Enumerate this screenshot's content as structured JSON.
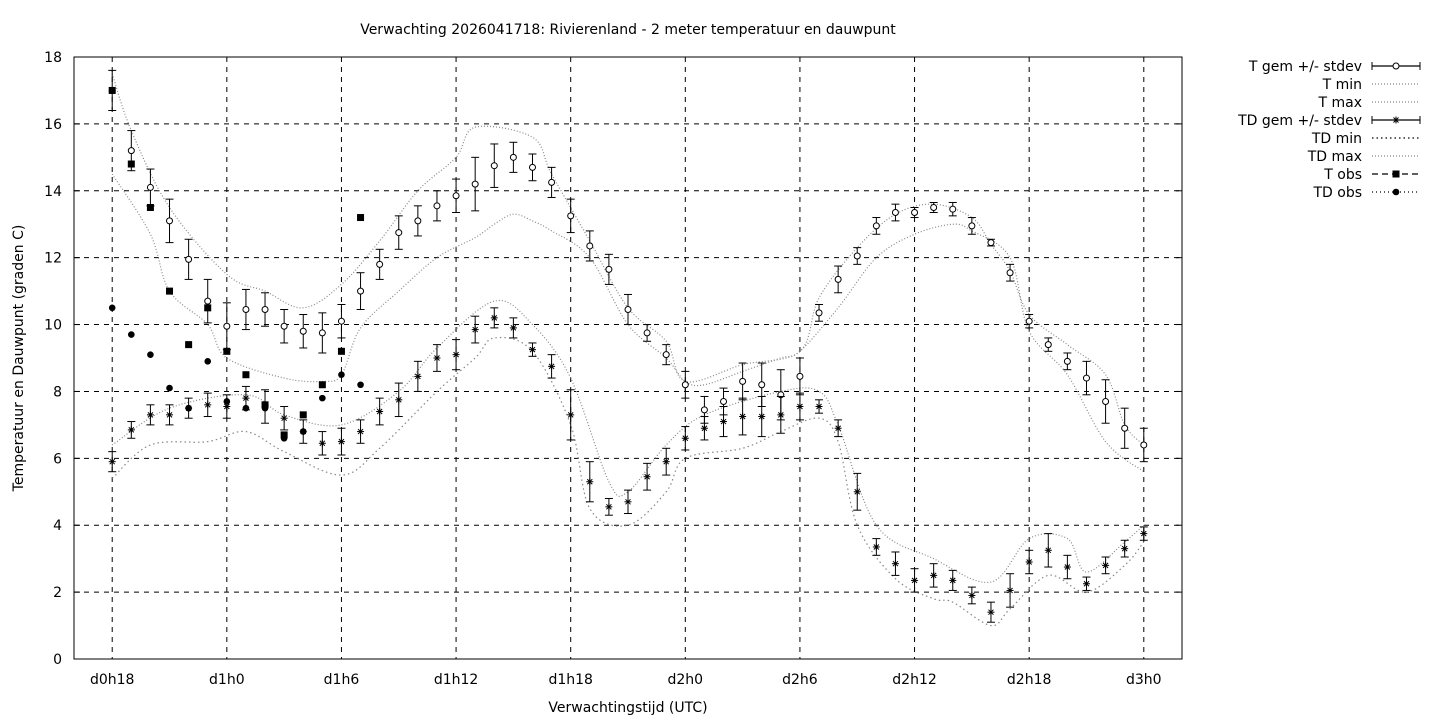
{
  "chart_data": {
    "type": "line",
    "title": "Verwachting 2026041718: Rivierenland - 2 meter temperatuur en dauwpunt",
    "xlabel": "Verwachtingstijd (UTC)",
    "ylabel": "Temperatuur en Dauwpunt (graden C)",
    "xlim_hours_from_start": [
      -2,
      56
    ],
    "ylim": [
      0,
      18
    ],
    "yticks": [
      0,
      2,
      4,
      6,
      8,
      10,
      12,
      14,
      16,
      18
    ],
    "xticks": [
      {
        "hour": 0,
        "label": "d0h18"
      },
      {
        "hour": 6,
        "label": "d1h0"
      },
      {
        "hour": 12,
        "label": "d1h6"
      },
      {
        "hour": 18,
        "label": "d1h12"
      },
      {
        "hour": 24,
        "label": "d1h18"
      },
      {
        "hour": 30,
        "label": "d2h0"
      },
      {
        "hour": 36,
        "label": "d2h6"
      },
      {
        "hour": 42,
        "label": "d2h12"
      },
      {
        "hour": 48,
        "label": "d2h18"
      },
      {
        "hour": 54,
        "label": "d3h0"
      }
    ],
    "grid": true,
    "legend_position": "outside-top-right",
    "legend": [
      "T gem +/- stdev",
      "T min",
      "T max",
      "TD gem +/- stdev",
      "TD min",
      "TD max",
      "T obs",
      "TD obs"
    ],
    "series": {
      "t_mean": {
        "name": "T gem +/- stdev",
        "values": [
          17.0,
          15.2,
          14.1,
          13.1,
          11.95,
          10.7,
          9.95,
          10.45,
          10.45,
          9.95,
          9.8,
          9.75,
          10.1,
          11.0,
          11.8,
          12.75,
          13.1,
          13.55,
          13.85,
          14.2,
          14.75,
          15.0,
          14.7,
          14.25,
          13.25,
          12.35,
          11.65,
          10.45,
          9.75,
          9.1,
          8.2,
          7.45,
          7.7,
          8.3,
          8.2,
          7.9,
          8.45,
          10.35,
          11.35,
          12.05,
          12.95,
          13.35,
          13.35,
          13.5,
          13.45,
          12.95,
          12.45,
          11.55,
          10.1,
          9.4,
          8.9,
          8.4,
          7.7,
          6.9,
          6.4
        ],
        "stdev": [
          0.6,
          0.6,
          0.55,
          0.65,
          0.6,
          0.65,
          0.7,
          0.6,
          0.5,
          0.5,
          0.5,
          0.6,
          0.5,
          0.55,
          0.45,
          0.5,
          0.45,
          0.45,
          0.5,
          0.8,
          0.65,
          0.45,
          0.4,
          0.45,
          0.5,
          0.45,
          0.45,
          0.45,
          0.25,
          0.3,
          0.4,
          0.4,
          0.4,
          0.55,
          0.65,
          0.75,
          0.55,
          0.25,
          0.4,
          0.25,
          0.25,
          0.25,
          0.15,
          0.15,
          0.2,
          0.25,
          0.1,
          0.25,
          0.2,
          0.2,
          0.25,
          0.5,
          0.65,
          0.6,
          0.5
        ]
      },
      "td_mean": {
        "name": "TD gem +/- stdev",
        "values": [
          5.9,
          6.85,
          7.3,
          7.3,
          7.5,
          7.6,
          7.55,
          7.8,
          7.55,
          7.2,
          6.8,
          6.45,
          6.5,
          6.8,
          7.4,
          7.75,
          8.45,
          9.0,
          9.1,
          9.85,
          10.2,
          9.9,
          9.25,
          8.75,
          7.3,
          5.3,
          4.55,
          4.7,
          5.45,
          5.9,
          6.6,
          6.9,
          7.1,
          7.25,
          7.25,
          7.3,
          7.55,
          7.55,
          6.9,
          5.0,
          3.35,
          2.85,
          2.35,
          2.5,
          2.35,
          1.9,
          1.4,
          2.05,
          2.9,
          3.25,
          2.75,
          2.25,
          2.8,
          3.3,
          3.75
        ],
        "stdev": [
          0.3,
          0.25,
          0.3,
          0.3,
          0.3,
          0.35,
          0.35,
          0.35,
          0.5,
          0.35,
          0.35,
          0.35,
          0.4,
          0.35,
          0.4,
          0.5,
          0.45,
          0.4,
          0.45,
          0.4,
          0.3,
          0.3,
          0.2,
          0.35,
          0.75,
          0.6,
          0.25,
          0.35,
          0.4,
          0.4,
          0.35,
          0.35,
          0.45,
          0.55,
          0.6,
          0.55,
          0.4,
          0.2,
          0.25,
          0.55,
          0.25,
          0.35,
          0.35,
          0.35,
          0.3,
          0.25,
          0.3,
          0.5,
          0.35,
          0.5,
          0.35,
          0.2,
          0.25,
          0.25,
          0.2
        ]
      },
      "t_min": {
        "name": "T min",
        "x": [
          0,
          2,
          3,
          5,
          6,
          9,
          11,
          12,
          13,
          15,
          17,
          19,
          20,
          21,
          22,
          23,
          25,
          27,
          29,
          30,
          31,
          33,
          35,
          36,
          38,
          40,
          42,
          44,
          45,
          47,
          48,
          50,
          52,
          54
        ],
        "values": [
          14.5,
          12.7,
          11.0,
          10.0,
          9.0,
          8.4,
          8.3,
          8.5,
          9.9,
          11.0,
          12.0,
          12.6,
          13.0,
          13.3,
          13.1,
          12.8,
          12.0,
          10.0,
          9.0,
          8.3,
          8.2,
          8.6,
          9.0,
          9.2,
          10.5,
          12.0,
          12.7,
          13.0,
          12.8,
          12.0,
          9.8,
          8.5,
          6.5,
          5.6
        ]
      },
      "t_max": {
        "name": "T max",
        "x": [
          0,
          1,
          3,
          6,
          8,
          10,
          12,
          14,
          16,
          18,
          19,
          22,
          23,
          25,
          27,
          29,
          30,
          33,
          36,
          37,
          39,
          41,
          43,
          45,
          46,
          47,
          48,
          50,
          52,
          53,
          54
        ],
        "values": [
          17.5,
          15.8,
          13.5,
          11.5,
          11.0,
          10.5,
          11.2,
          12.5,
          14.0,
          15.0,
          15.9,
          15.6,
          14.5,
          12.5,
          10.5,
          9.5,
          8.3,
          8.8,
          9.2,
          10.8,
          12.3,
          13.3,
          13.6,
          13.2,
          12.4,
          11.6,
          10.3,
          9.4,
          8.5,
          7.0,
          6.4
        ]
      },
      "td_min": {
        "name": "TD min",
        "x": [
          0,
          2,
          5,
          7,
          9,
          12,
          14,
          17,
          19,
          20,
          22,
          24,
          25,
          27,
          29,
          30,
          33,
          35,
          37,
          38,
          39,
          41,
          43,
          44,
          46,
          47,
          49,
          51,
          53,
          54
        ],
        "values": [
          5.4,
          6.4,
          6.5,
          6.8,
          6.2,
          5.5,
          6.3,
          8.0,
          9.0,
          9.6,
          9.2,
          7.0,
          4.5,
          4.0,
          5.0,
          6.0,
          6.3,
          6.8,
          7.2,
          6.5,
          4.0,
          2.4,
          1.8,
          1.7,
          1.0,
          1.5,
          2.5,
          2.0,
          2.8,
          3.5
        ]
      },
      "td_max": {
        "name": "TD max",
        "x": [
          0,
          3,
          7,
          9,
          12,
          15,
          17,
          20,
          22,
          24,
          26,
          27,
          29,
          31,
          35,
          37,
          38,
          40,
          43,
          46,
          48,
          50,
          51,
          53,
          54
        ],
        "values": [
          6.4,
          7.5,
          7.9,
          7.3,
          7.0,
          8.0,
          9.3,
          10.7,
          10.0,
          8.4,
          5.3,
          5.0,
          6.4,
          7.3,
          8.0,
          8.0,
          7.0,
          4.0,
          3.0,
          2.3,
          3.6,
          3.6,
          2.6,
          3.5,
          4.0
        ]
      },
      "t_obs": {
        "name": "T obs",
        "values": [
          17.0,
          14.8,
          13.5,
          11.0,
          9.4,
          10.5,
          9.2,
          8.5,
          7.6,
          6.7,
          7.3,
          8.2,
          9.2,
          13.2
        ]
      },
      "td_obs": {
        "name": "TD obs",
        "values": [
          10.5,
          9.7,
          9.1,
          8.1,
          7.5,
          8.9,
          7.7,
          7.5,
          7.5,
          6.6,
          6.8,
          7.8,
          8.5,
          8.2
        ]
      }
    }
  }
}
